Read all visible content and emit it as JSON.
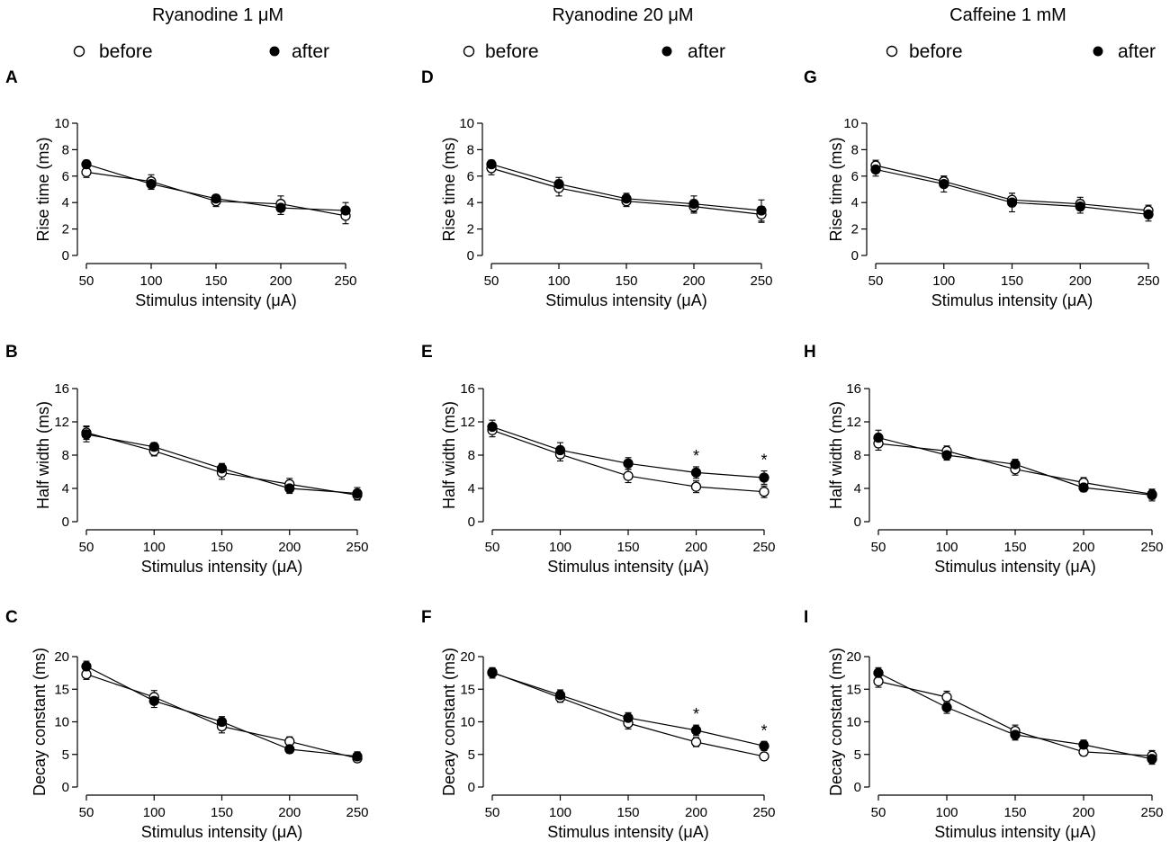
{
  "figure": {
    "columns": [
      {
        "title": "Ryanodine 1 μM"
      },
      {
        "title": "Ryanodine  20 μM"
      },
      {
        "title": "Caffeine 1 mM"
      }
    ],
    "legend": {
      "before": "before",
      "after": "after"
    }
  },
  "chart_data": [
    {
      "id": "A",
      "type": "line",
      "panel_label": "A",
      "group": "Ryanodine 1 μM",
      "xlabel": "Stimulus intensity (μA)",
      "ylabel": "Rise  time (ms)",
      "x": [
        50,
        100,
        150,
        200,
        250
      ],
      "x_ticks": [
        50,
        100,
        150,
        200,
        250
      ],
      "ylim": [
        0,
        10
      ],
      "y_ticks": [
        0,
        2,
        4,
        6,
        8,
        10
      ],
      "series": [
        {
          "name": "before",
          "marker": "open-circle",
          "values": [
            6.3,
            5.6,
            4.1,
            3.9,
            3.0
          ],
          "errors": [
            0.4,
            0.5,
            0.4,
            0.6,
            0.6
          ]
        },
        {
          "name": "after",
          "marker": "filled-circle",
          "values": [
            6.9,
            5.4,
            4.3,
            3.6,
            3.4
          ],
          "errors": [
            0.3,
            0.4,
            0.3,
            0.5,
            0.6
          ]
        }
      ],
      "annotations": []
    },
    {
      "id": "D",
      "type": "line",
      "panel_label": "D",
      "group": "Ryanodine  20 μM",
      "xlabel": "Stimulus intensity (μA)",
      "ylabel": "Rise  time (ms)",
      "x": [
        50,
        100,
        150,
        200,
        250
      ],
      "x_ticks": [
        50,
        100,
        150,
        200,
        250
      ],
      "ylim": [
        0,
        10
      ],
      "y_ticks": [
        0,
        2,
        4,
        6,
        8,
        10
      ],
      "series": [
        {
          "name": "before",
          "marker": "open-circle",
          "values": [
            6.6,
            5.1,
            4.1,
            3.7,
            3.1
          ],
          "errors": [
            0.5,
            0.6,
            0.4,
            0.5,
            0.6
          ]
        },
        {
          "name": "after",
          "marker": "filled-circle",
          "values": [
            6.9,
            5.4,
            4.3,
            3.9,
            3.4
          ],
          "errors": [
            0.3,
            0.5,
            0.4,
            0.6,
            0.8
          ]
        }
      ],
      "annotations": []
    },
    {
      "id": "G",
      "type": "line",
      "panel_label": "G",
      "group": "Caffeine 1 mM",
      "xlabel": "Stimulus intensity (μA)",
      "ylabel": "Rise  time (ms)",
      "x": [
        50,
        100,
        150,
        200,
        250
      ],
      "x_ticks": [
        50,
        100,
        150,
        200,
        250
      ],
      "ylim": [
        0,
        10
      ],
      "y_ticks": [
        0,
        2,
        4,
        6,
        8,
        10
      ],
      "series": [
        {
          "name": "before",
          "marker": "open-circle",
          "values": [
            6.8,
            5.6,
            4.2,
            3.9,
            3.4
          ],
          "errors": [
            0.4,
            0.4,
            0.5,
            0.5,
            0.4
          ]
        },
        {
          "name": "after",
          "marker": "filled-circle",
          "values": [
            6.5,
            5.4,
            4.0,
            3.7,
            3.1
          ],
          "errors": [
            0.5,
            0.6,
            0.7,
            0.5,
            0.5
          ]
        }
      ],
      "annotations": []
    },
    {
      "id": "B",
      "type": "line",
      "panel_label": "B",
      "group": "Ryanodine 1 μM",
      "xlabel": "Stimulus intensity (μA)",
      "ylabel": "Half width (ms)",
      "x": [
        50,
        100,
        150,
        200,
        250
      ],
      "x_ticks": [
        50,
        100,
        150,
        200,
        250
      ],
      "ylim": [
        0,
        16
      ],
      "y_ticks": [
        0,
        4,
        8,
        12,
        16
      ],
      "series": [
        {
          "name": "before",
          "marker": "open-circle",
          "values": [
            10.7,
            8.5,
            5.9,
            4.5,
            3.2
          ],
          "errors": [
            0.8,
            0.6,
            0.8,
            0.7,
            0.6
          ]
        },
        {
          "name": "after",
          "marker": "filled-circle",
          "values": [
            10.5,
            9.0,
            6.4,
            4.0,
            3.4
          ],
          "errors": [
            0.9,
            0.5,
            0.6,
            0.6,
            0.7
          ]
        }
      ],
      "annotations": []
    },
    {
      "id": "E",
      "type": "line",
      "panel_label": "E",
      "group": "Ryanodine  20 μM",
      "xlabel": "Stimulus intensity (μA)",
      "ylabel": "Half width (ms)",
      "x": [
        50,
        100,
        150,
        200,
        250
      ],
      "x_ticks": [
        50,
        100,
        150,
        200,
        250
      ],
      "ylim": [
        0,
        16
      ],
      "y_ticks": [
        0,
        4,
        8,
        12,
        16
      ],
      "series": [
        {
          "name": "before",
          "marker": "open-circle",
          "values": [
            11.0,
            8.1,
            5.5,
            4.2,
            3.6
          ],
          "errors": [
            0.8,
            0.8,
            0.8,
            0.7,
            0.7
          ]
        },
        {
          "name": "after",
          "marker": "filled-circle",
          "values": [
            11.4,
            8.6,
            7.0,
            5.9,
            5.3
          ],
          "errors": [
            0.8,
            0.9,
            0.7,
            0.7,
            0.8
          ]
        }
      ],
      "annotations": [
        {
          "text": "*",
          "x": 200
        },
        {
          "text": "*",
          "x": 250
        }
      ]
    },
    {
      "id": "H",
      "type": "line",
      "panel_label": "H",
      "group": "Caffeine 1 mM",
      "xlabel": "Stimulus intensity (μA)",
      "ylabel": "Half width (ms)",
      "x": [
        50,
        100,
        150,
        200,
        250
      ],
      "x_ticks": [
        50,
        100,
        150,
        200,
        250
      ],
      "ylim": [
        0,
        16
      ],
      "y_ticks": [
        0,
        4,
        8,
        12,
        16
      ],
      "series": [
        {
          "name": "before",
          "marker": "open-circle",
          "values": [
            9.4,
            8.5,
            6.3,
            4.7,
            3.3
          ],
          "errors": [
            0.8,
            0.6,
            0.7,
            0.6,
            0.6
          ]
        },
        {
          "name": "after",
          "marker": "filled-circle",
          "values": [
            10.1,
            8.0,
            6.9,
            4.1,
            3.2
          ],
          "errors": [
            0.9,
            0.6,
            0.6,
            0.5,
            0.7
          ]
        }
      ],
      "annotations": []
    },
    {
      "id": "C",
      "type": "line",
      "panel_label": "C",
      "group": "Ryanodine 1 μM",
      "xlabel": "Stimulus intensity (μA)",
      "ylabel": "Decay constant (ms)",
      "x": [
        50,
        100,
        150,
        200,
        250
      ],
      "x_ticks": [
        50,
        100,
        150,
        200,
        250
      ],
      "ylim": [
        0,
        20
      ],
      "y_ticks": [
        0,
        5,
        10,
        15,
        20
      ],
      "series": [
        {
          "name": "before",
          "marker": "open-circle",
          "values": [
            17.3,
            13.8,
            9.3,
            7.0,
            4.4
          ],
          "errors": [
            0.8,
            1.0,
            1.0,
            0.7,
            0.6
          ]
        },
        {
          "name": "after",
          "marker": "filled-circle",
          "values": [
            18.5,
            13.2,
            10.0,
            5.8,
            4.7
          ],
          "errors": [
            0.8,
            1.0,
            0.8,
            0.6,
            0.7
          ]
        }
      ],
      "annotations": []
    },
    {
      "id": "F",
      "type": "line",
      "panel_label": "F",
      "group": "Ryanodine  20 μM",
      "xlabel": "Stimulus intensity (μA)",
      "ylabel": "Decay constant (ms)",
      "x": [
        50,
        100,
        150,
        200,
        250
      ],
      "x_ticks": [
        50,
        100,
        150,
        200,
        250
      ],
      "ylim": [
        0,
        20
      ],
      "y_ticks": [
        0,
        5,
        10,
        15,
        20
      ],
      "series": [
        {
          "name": "before",
          "marker": "open-circle",
          "values": [
            17.6,
            13.7,
            9.8,
            6.9,
            4.7
          ],
          "errors": [
            0.6,
            0.7,
            0.9,
            0.7,
            0.4
          ]
        },
        {
          "name": "after",
          "marker": "filled-circle",
          "values": [
            17.5,
            14.1,
            10.6,
            8.7,
            6.3
          ],
          "errors": [
            0.8,
            0.8,
            0.8,
            0.8,
            0.7
          ]
        }
      ],
      "annotations": [
        {
          "text": "*",
          "x": 200
        },
        {
          "text": "*",
          "x": 250
        }
      ]
    },
    {
      "id": "I",
      "type": "line",
      "panel_label": "I",
      "group": "Caffeine 1 mM",
      "xlabel": "Stimulus intensity (μA)",
      "ylabel": "Decay constant (ms)",
      "x": [
        50,
        100,
        150,
        200,
        250
      ],
      "x_ticks": [
        50,
        100,
        150,
        200,
        250
      ],
      "ylim": [
        0,
        20
      ],
      "y_ticks": [
        0,
        5,
        10,
        15,
        20
      ],
      "series": [
        {
          "name": "before",
          "marker": "open-circle",
          "values": [
            16.2,
            13.8,
            8.6,
            5.4,
            4.8
          ],
          "errors": [
            0.9,
            0.9,
            0.9,
            0.6,
            0.8
          ]
        },
        {
          "name": "after",
          "marker": "filled-circle",
          "values": [
            17.5,
            12.2,
            8.0,
            6.5,
            4.3
          ],
          "errors": [
            0.8,
            0.9,
            0.8,
            0.7,
            0.8
          ]
        }
      ],
      "annotations": []
    }
  ]
}
